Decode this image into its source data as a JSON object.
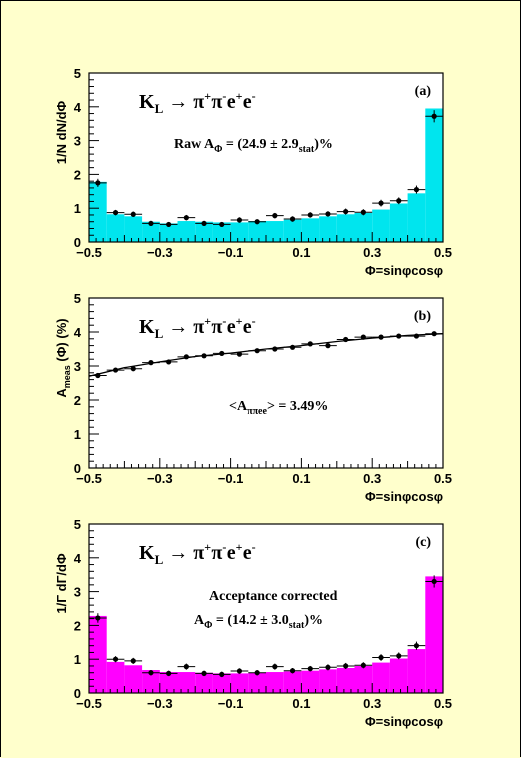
{
  "chart_data": [
    {
      "type": "bar",
      "style": "histogram",
      "panel_label": "(a)",
      "process_label": {
        "main": "K",
        "sub": "L",
        "arrow": "→",
        "particles": [
          [
            "π",
            "+"
          ],
          [
            "π",
            "-"
          ],
          [
            "e",
            "+"
          ],
          [
            "e",
            "-"
          ]
        ]
      },
      "annotation_lines": [
        {
          "parts": [
            {
              "t": "Raw A"
            },
            {
              "t": "Φ",
              "sub": true
            },
            {
              "t": " = (24.9 ± 2.9"
            },
            {
              "t": "stat",
              "sub": true
            },
            {
              "t": ")%"
            }
          ]
        }
      ],
      "ylabel": "1/N dN/dΦ",
      "xlabel": "Φ=sinφcosφ",
      "xlim": [
        -0.5,
        0.5
      ],
      "ylim": [
        0,
        5
      ],
      "xticks": [
        "-0.5",
        "-0.3",
        "-0.1",
        "0.1",
        "0.3",
        "0.5"
      ],
      "yticks": [
        "0",
        "1",
        "2",
        "3",
        "4",
        "5"
      ],
      "fill_color": "#00e5ee",
      "bin_edges": [
        -0.5,
        -0.45,
        -0.4,
        -0.35,
        -0.3,
        -0.25,
        -0.2,
        -0.15,
        -0.1,
        -0.05,
        0.0,
        0.05,
        0.1,
        0.15,
        0.2,
        0.25,
        0.3,
        0.35,
        0.4,
        0.45,
        0.5
      ],
      "values": [
        1.78,
        0.82,
        0.76,
        0.6,
        0.55,
        0.62,
        0.6,
        0.58,
        0.58,
        0.62,
        0.62,
        0.66,
        0.7,
        0.76,
        0.82,
        0.86,
        0.96,
        1.14,
        1.44,
        3.95
      ],
      "points": [
        {
          "x": -0.475,
          "y": 1.75,
          "err": 0.12
        },
        {
          "x": -0.425,
          "y": 0.87,
          "err": 0.08
        },
        {
          "x": -0.375,
          "y": 0.82,
          "err": 0.08
        },
        {
          "x": -0.325,
          "y": 0.55,
          "err": 0.07
        },
        {
          "x": -0.275,
          "y": 0.52,
          "err": 0.07
        },
        {
          "x": -0.225,
          "y": 0.72,
          "err": 0.08
        },
        {
          "x": -0.175,
          "y": 0.55,
          "err": 0.07
        },
        {
          "x": -0.125,
          "y": 0.52,
          "err": 0.07
        },
        {
          "x": -0.075,
          "y": 0.65,
          "err": 0.08
        },
        {
          "x": -0.025,
          "y": 0.6,
          "err": 0.07
        },
        {
          "x": 0.025,
          "y": 0.78,
          "err": 0.08
        },
        {
          "x": 0.075,
          "y": 0.68,
          "err": 0.08
        },
        {
          "x": 0.125,
          "y": 0.8,
          "err": 0.08
        },
        {
          "x": 0.175,
          "y": 0.83,
          "err": 0.08
        },
        {
          "x": 0.225,
          "y": 0.9,
          "err": 0.09
        },
        {
          "x": 0.275,
          "y": 0.88,
          "err": 0.09
        },
        {
          "x": 0.325,
          "y": 1.15,
          "err": 0.1
        },
        {
          "x": 0.375,
          "y": 1.22,
          "err": 0.1
        },
        {
          "x": 0.425,
          "y": 1.55,
          "err": 0.12
        },
        {
          "x": 0.475,
          "y": 3.72,
          "err": 0.18
        }
      ]
    },
    {
      "type": "scatter",
      "style": "points_with_curve",
      "panel_label": "(b)",
      "process_label": {
        "main": "K",
        "sub": "L",
        "arrow": "→",
        "particles": [
          [
            "π",
            "+"
          ],
          [
            "π",
            "-"
          ],
          [
            "e",
            "+"
          ],
          [
            "e",
            "-"
          ]
        ]
      },
      "annotation_lines": [
        {
          "parts": [
            {
              "t": "<A"
            },
            {
              "t": "ππee",
              "sub": true
            },
            {
              "t": "> = 3.49%"
            }
          ]
        }
      ],
      "ylabel": "A",
      "ylabel_sub": "meas",
      "ylabel_rest": "(Φ)  (%)",
      "xlabel": "Φ=sinφcosφ",
      "xlim": [
        -0.5,
        0.5
      ],
      "ylim": [
        0,
        5
      ],
      "xticks": [
        "-0.5",
        "-0.3",
        "-0.1",
        "0.1",
        "0.3",
        "0.5"
      ],
      "yticks": [
        "0",
        "1",
        "2",
        "3",
        "4",
        "5"
      ],
      "points": [
        {
          "x": -0.475,
          "y": 2.72,
          "err": 0.0
        },
        {
          "x": -0.425,
          "y": 2.88,
          "err": 0.0
        },
        {
          "x": -0.375,
          "y": 2.92,
          "err": 0.0
        },
        {
          "x": -0.325,
          "y": 3.1,
          "err": 0.0
        },
        {
          "x": -0.275,
          "y": 3.12,
          "err": 0.0
        },
        {
          "x": -0.225,
          "y": 3.27,
          "err": 0.0
        },
        {
          "x": -0.175,
          "y": 3.3,
          "err": 0.0
        },
        {
          "x": -0.125,
          "y": 3.37,
          "err": 0.0
        },
        {
          "x": -0.075,
          "y": 3.35,
          "err": 0.0
        },
        {
          "x": -0.025,
          "y": 3.45,
          "err": 0.0
        },
        {
          "x": 0.025,
          "y": 3.5,
          "err": 0.0
        },
        {
          "x": 0.075,
          "y": 3.55,
          "err": 0.0
        },
        {
          "x": 0.125,
          "y": 3.65,
          "err": 0.0
        },
        {
          "x": 0.175,
          "y": 3.6,
          "err": 0.0
        },
        {
          "x": 0.225,
          "y": 3.78,
          "err": 0.0
        },
        {
          "x": 0.275,
          "y": 3.85,
          "err": 0.0
        },
        {
          "x": 0.325,
          "y": 3.85,
          "err": 0.0
        },
        {
          "x": 0.375,
          "y": 3.88,
          "err": 0.0
        },
        {
          "x": 0.425,
          "y": 3.88,
          "err": 0.0
        },
        {
          "x": 0.475,
          "y": 3.95,
          "err": 0.0
        }
      ],
      "curve": [
        {
          "x": -0.5,
          "y": 2.7
        },
        {
          "x": -0.4,
          "y": 2.95
        },
        {
          "x": -0.3,
          "y": 3.12
        },
        {
          "x": -0.2,
          "y": 3.28
        },
        {
          "x": -0.1,
          "y": 3.38
        },
        {
          "x": 0.0,
          "y": 3.5
        },
        {
          "x": 0.1,
          "y": 3.6
        },
        {
          "x": 0.2,
          "y": 3.72
        },
        {
          "x": 0.3,
          "y": 3.82
        },
        {
          "x": 0.4,
          "y": 3.9
        },
        {
          "x": 0.5,
          "y": 3.95
        }
      ]
    },
    {
      "type": "bar",
      "style": "histogram",
      "panel_label": "(c)",
      "process_label": {
        "main": "K",
        "sub": "L",
        "arrow": "→",
        "particles": [
          [
            "π",
            "+"
          ],
          [
            "π",
            "-"
          ],
          [
            "e",
            "+"
          ],
          [
            "e",
            "-"
          ]
        ]
      },
      "annotation_lines": [
        {
          "parts": [
            {
              "t": "Acceptance corrected"
            }
          ]
        },
        {
          "parts": [
            {
              "t": "A"
            },
            {
              "t": "Φ",
              "sub": true
            },
            {
              "t": " = (14.2 ± 3.0"
            },
            {
              "t": "stat",
              "sub": true
            },
            {
              "t": ")%"
            }
          ]
        }
      ],
      "ylabel": "1/Γ dΓ/dΦ",
      "xlabel": "Φ=sinφcosφ",
      "xlim": [
        -0.5,
        0.5
      ],
      "ylim": [
        0,
        5
      ],
      "xticks": [
        "-0.5",
        "-0.3",
        "-0.1",
        "0.1",
        "0.3",
        "0.5"
      ],
      "yticks": [
        "0",
        "1",
        "2",
        "3",
        "4",
        "5"
      ],
      "fill_color": "#ff00ff",
      "bin_edges": [
        -0.5,
        -0.45,
        -0.4,
        -0.35,
        -0.3,
        -0.25,
        -0.2,
        -0.15,
        -0.1,
        -0.05,
        0.0,
        0.05,
        0.1,
        0.15,
        0.2,
        0.25,
        0.3,
        0.35,
        0.4,
        0.45,
        0.5
      ],
      "values": [
        2.28,
        0.92,
        0.82,
        0.68,
        0.62,
        0.62,
        0.6,
        0.58,
        0.58,
        0.6,
        0.62,
        0.64,
        0.66,
        0.7,
        0.74,
        0.8,
        0.9,
        1.02,
        1.3,
        3.45
      ],
      "points": [
        {
          "x": -0.475,
          "y": 2.22,
          "err": 0.14
        },
        {
          "x": -0.425,
          "y": 1.0,
          "err": 0.09
        },
        {
          "x": -0.375,
          "y": 0.95,
          "err": 0.09
        },
        {
          "x": -0.325,
          "y": 0.6,
          "err": 0.08
        },
        {
          "x": -0.275,
          "y": 0.58,
          "err": 0.08
        },
        {
          "x": -0.225,
          "y": 0.78,
          "err": 0.09
        },
        {
          "x": -0.175,
          "y": 0.58,
          "err": 0.08
        },
        {
          "x": -0.125,
          "y": 0.55,
          "err": 0.08
        },
        {
          "x": -0.075,
          "y": 0.65,
          "err": 0.08
        },
        {
          "x": -0.025,
          "y": 0.6,
          "err": 0.08
        },
        {
          "x": 0.025,
          "y": 0.78,
          "err": 0.09
        },
        {
          "x": 0.075,
          "y": 0.66,
          "err": 0.08
        },
        {
          "x": 0.125,
          "y": 0.72,
          "err": 0.08
        },
        {
          "x": 0.175,
          "y": 0.76,
          "err": 0.09
        },
        {
          "x": 0.225,
          "y": 0.8,
          "err": 0.09
        },
        {
          "x": 0.275,
          "y": 0.82,
          "err": 0.09
        },
        {
          "x": 0.325,
          "y": 1.05,
          "err": 0.1
        },
        {
          "x": 0.375,
          "y": 1.1,
          "err": 0.1
        },
        {
          "x": 0.425,
          "y": 1.4,
          "err": 0.12
        },
        {
          "x": 0.475,
          "y": 3.3,
          "err": 0.18
        }
      ]
    }
  ]
}
